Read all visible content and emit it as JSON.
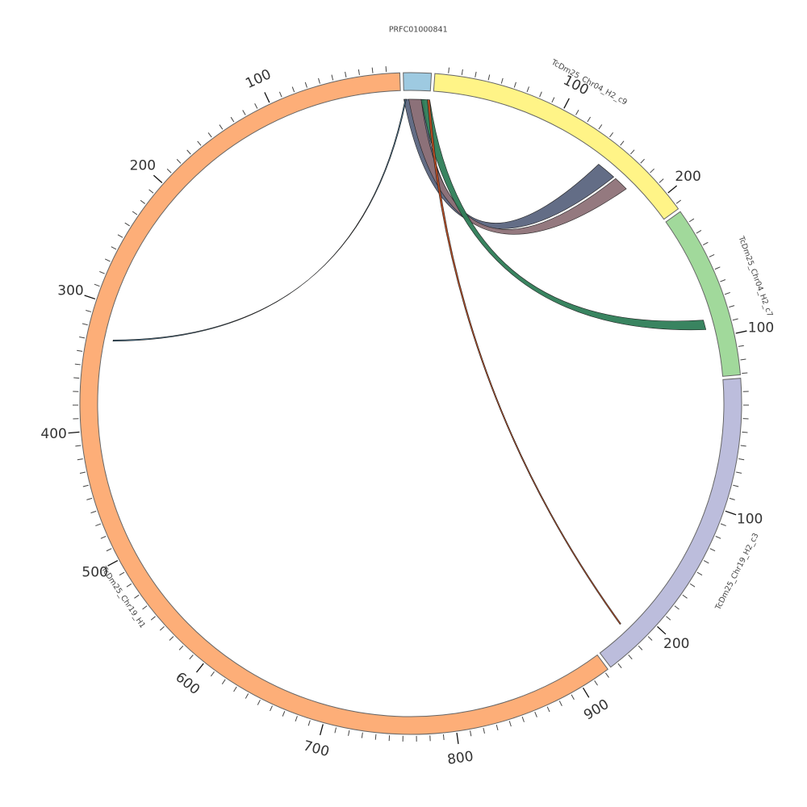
{
  "diagram": {
    "type": "circos",
    "tick_interval": 10,
    "major_tick_interval": 100,
    "segments": [
      {
        "id": "prfc",
        "label": "PRFC01000841",
        "length": 21,
        "color": "#9ecae1",
        "ticks": false,
        "start": 0
      },
      {
        "id": "c9",
        "label": "TcDm25_Chr04_H2_c9",
        "length": 214,
        "color": "#fff487",
        "ticks": true,
        "start": 0
      },
      {
        "id": "c7",
        "label": "TcDm25_Chr04_H2_c7",
        "length": 131,
        "color": "#a1d99b",
        "ticks": true,
        "start": 0
      },
      {
        "id": "c3",
        "label": "TcDm25_Chr19_H2_c3",
        "length": 246,
        "color": "#bcbddc",
        "ticks": true,
        "start": 0
      },
      {
        "id": "h1",
        "label": "TcDm25_Chr19_H1",
        "length": 923,
        "color": "#fdae78",
        "ticks": true,
        "start": 0,
        "reversed": true
      }
    ],
    "links": [
      {
        "from": "prfc",
        "f1": 0,
        "f2": 16,
        "to": "c9",
        "t1": 146,
        "t2": 162,
        "color": "#5b6580"
      },
      {
        "from": "prfc",
        "f1": 4,
        "f2": 14,
        "to": "c9",
        "t1": 164,
        "t2": 176,
        "color": "#8e7278"
      },
      {
        "from": "prfc",
        "f1": 14,
        "f2": 21,
        "to": "c7",
        "t1": 84,
        "t2": 92,
        "color": "#2e7d57"
      },
      {
        "from": "prfc",
        "f1": 19,
        "f2": 21,
        "to": "c3",
        "t1": 218,
        "t2": 219,
        "color": "#b8481c"
      },
      {
        "from": "prfc",
        "f1": 1,
        "f2": 2,
        "to": "h1",
        "t1": 327,
        "t2": 328,
        "color": "#3f6e8c"
      }
    ]
  }
}
